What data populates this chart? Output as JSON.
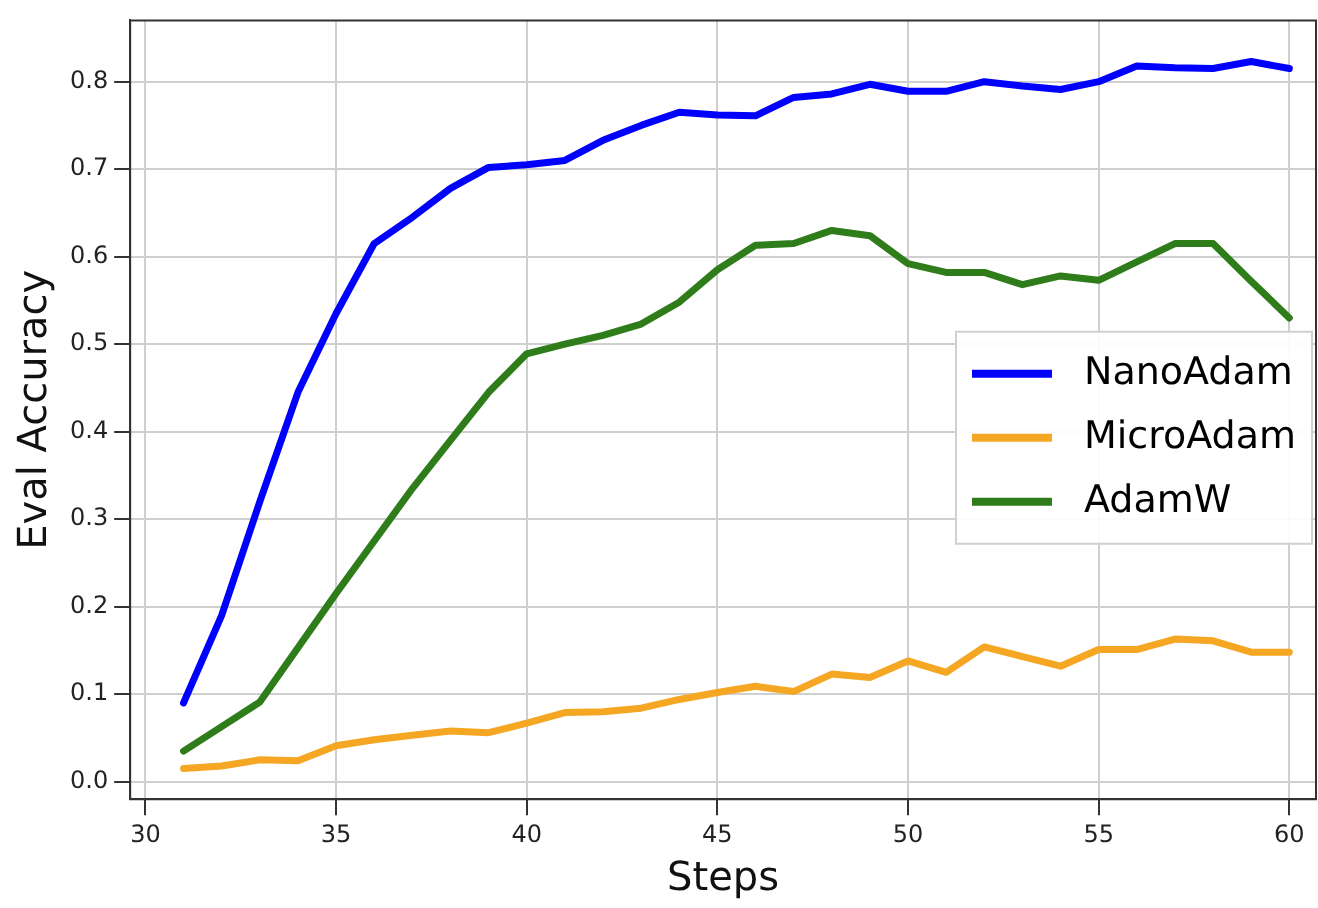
{
  "chart_data": {
    "type": "line",
    "xlabel": "Steps",
    "ylabel": "Eval Accuracy",
    "x": [
      31,
      32,
      33,
      34,
      35,
      36,
      37,
      38,
      39,
      40,
      41,
      42,
      43,
      44,
      45,
      46,
      47,
      48,
      49,
      50,
      51,
      52,
      53,
      54,
      55,
      56,
      57,
      58,
      59,
      60
    ],
    "series": [
      {
        "name": "NanoAdam",
        "color": "#0000ff",
        "values": [
          0.09,
          0.19,
          0.32,
          0.445,
          0.535,
          0.615,
          0.645,
          0.678,
          0.702,
          0.705,
          0.71,
          0.733,
          0.75,
          0.765,
          0.762,
          0.761,
          0.782,
          0.786,
          0.797,
          0.789,
          0.789,
          0.8,
          0.795,
          0.791,
          0.8,
          0.818,
          0.816,
          0.815,
          0.823,
          0.815
        ]
      },
      {
        "name": "MicroAdam",
        "color": "#f5a623",
        "values": [
          0.015,
          0.018,
          0.025,
          0.024,
          0.041,
          0.048,
          0.053,
          0.058,
          0.056,
          0.067,
          0.079,
          0.08,
          0.084,
          0.094,
          0.102,
          0.109,
          0.103,
          0.123,
          0.119,
          0.138,
          0.125,
          0.154,
          0.143,
          0.132,
          0.151,
          0.151,
          0.163,
          0.161,
          0.148,
          0.148
        ]
      },
      {
        "name": "AdamW",
        "color": "#2e7d1a",
        "values": [
          0.035,
          0.063,
          0.091,
          0.153,
          0.215,
          0.275,
          0.335,
          0.39,
          0.445,
          0.489,
          0.5,
          0.51,
          0.523,
          0.548,
          0.585,
          0.613,
          0.615,
          0.63,
          0.624,
          0.592,
          0.582,
          0.582,
          0.568,
          0.578,
          0.573,
          0.594,
          0.615,
          0.615,
          0.572,
          0.53
        ]
      }
    ],
    "xlim": [
      29.6,
      60.7
    ],
    "ylim": [
      -0.02,
      0.87
    ],
    "xticks": [
      30,
      35,
      40,
      45,
      50,
      55,
      60
    ],
    "yticks": [
      {
        "value": 0,
        "label": "0.0"
      },
      0.1,
      0.2,
      0.3,
      0.4,
      0.5,
      0.6,
      0.7,
      0.8
    ],
    "grid": true,
    "legend": "right",
    "marker": "none",
    "line_style": "solid"
  }
}
